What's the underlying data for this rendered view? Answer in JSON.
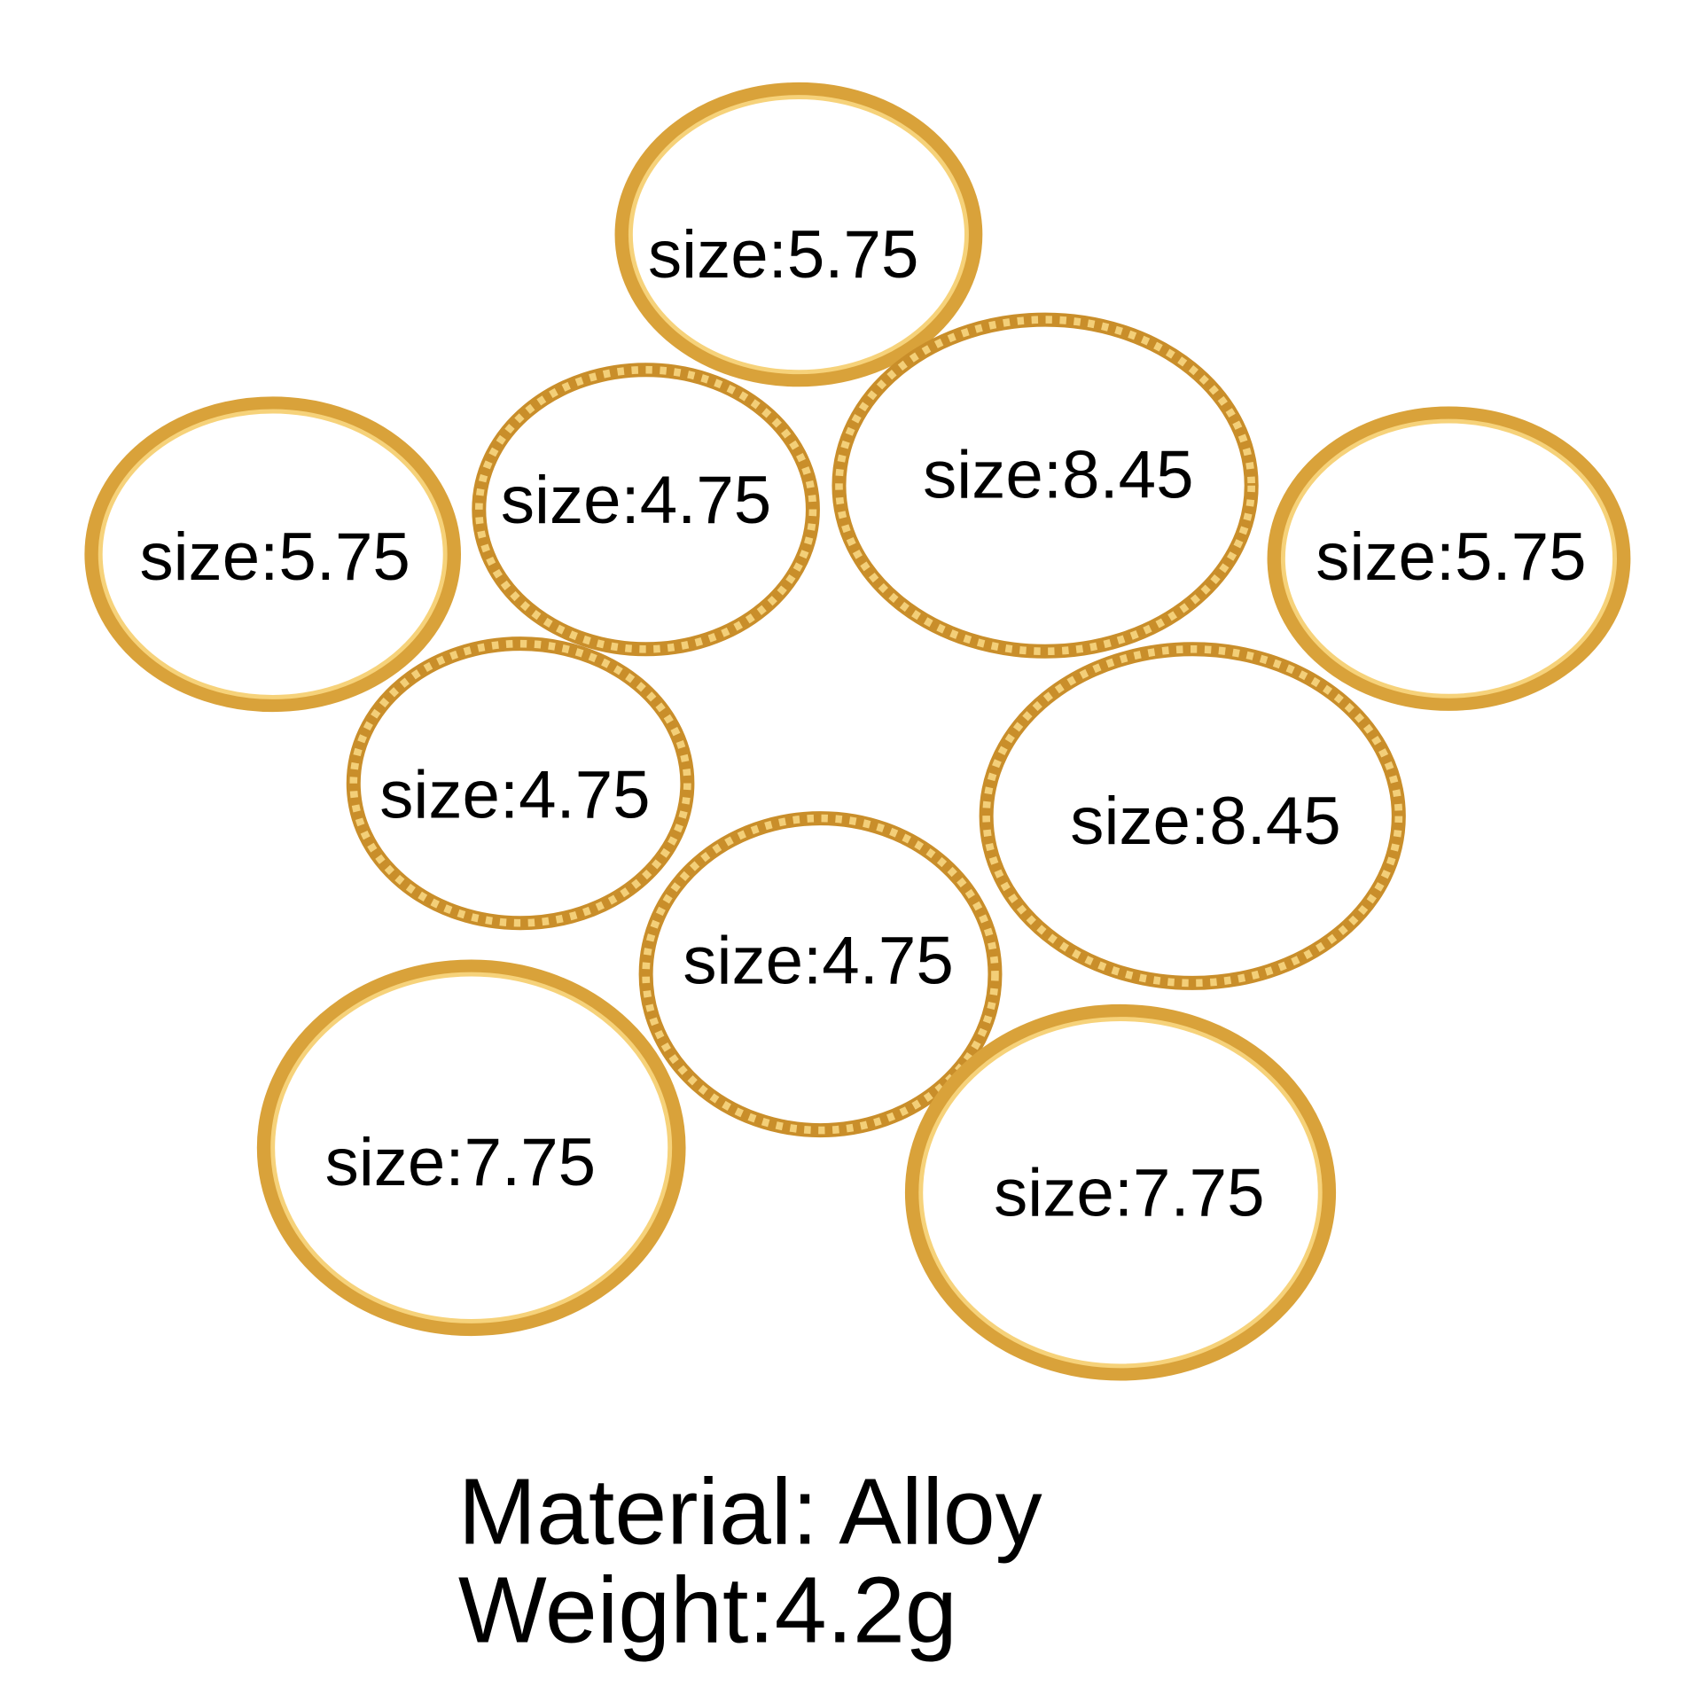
{
  "rings": [
    {
      "label": "size:5.75"
    },
    {
      "label": "size:5.75"
    },
    {
      "label": "size:4.75"
    },
    {
      "label": "size:8.45"
    },
    {
      "label": "size:5.75"
    },
    {
      "label": "size:4.75"
    },
    {
      "label": "size:4.75"
    },
    {
      "label": "size:8.45"
    },
    {
      "label": "size:7.75"
    },
    {
      "label": "size:7.75"
    }
  ],
  "material": "Material: Alloy",
  "weight": "Weight:4.2g"
}
